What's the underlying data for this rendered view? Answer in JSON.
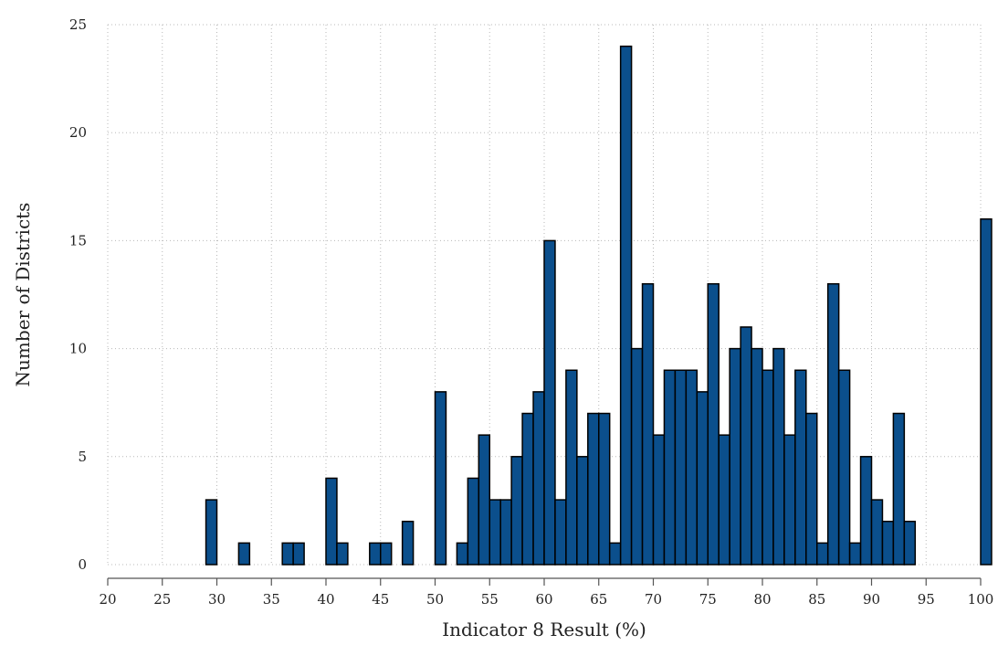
{
  "chart_data": {
    "type": "bar",
    "title": "",
    "xlabel": "Indicator 8 Result (%)",
    "ylabel": "Number of Districts",
    "xlim": [
      20,
      100
    ],
    "ylim": [
      0,
      25
    ],
    "bin_width": 1,
    "x_ticks": [
      "20",
      "25",
      "30",
      "35",
      "40",
      "45",
      "50",
      "55",
      "60",
      "65",
      "70",
      "75",
      "80",
      "85",
      "90",
      "95",
      "100"
    ],
    "y_ticks": [
      "0",
      "5",
      "10",
      "15",
      "20",
      "25"
    ],
    "grid": true,
    "bar_color": "#0b4f8c",
    "edge_color": "#000000",
    "series": [
      {
        "x": [
          29,
          32,
          36,
          37,
          40,
          41,
          44,
          45,
          47,
          50,
          52,
          53,
          54,
          55,
          56,
          57,
          58,
          59,
          60,
          61,
          62,
          63,
          64,
          65,
          66,
          67,
          68,
          69,
          70,
          71,
          72,
          73,
          74,
          75,
          76,
          77,
          78,
          79,
          80,
          81,
          82,
          83,
          84,
          85,
          86,
          87,
          88,
          89,
          90,
          91,
          92,
          93,
          100
        ],
        "values": [
          3,
          1,
          1,
          1,
          4,
          1,
          1,
          1,
          2,
          8,
          1,
          4,
          6,
          3,
          3,
          5,
          7,
          8,
          15,
          3,
          9,
          5,
          7,
          7,
          1,
          24,
          10,
          13,
          6,
          9,
          9,
          9,
          8,
          13,
          6,
          10,
          11,
          10,
          9,
          10,
          6,
          9,
          7,
          1,
          13,
          9,
          1,
          5,
          3,
          2,
          7,
          2,
          16
        ]
      }
    ]
  }
}
